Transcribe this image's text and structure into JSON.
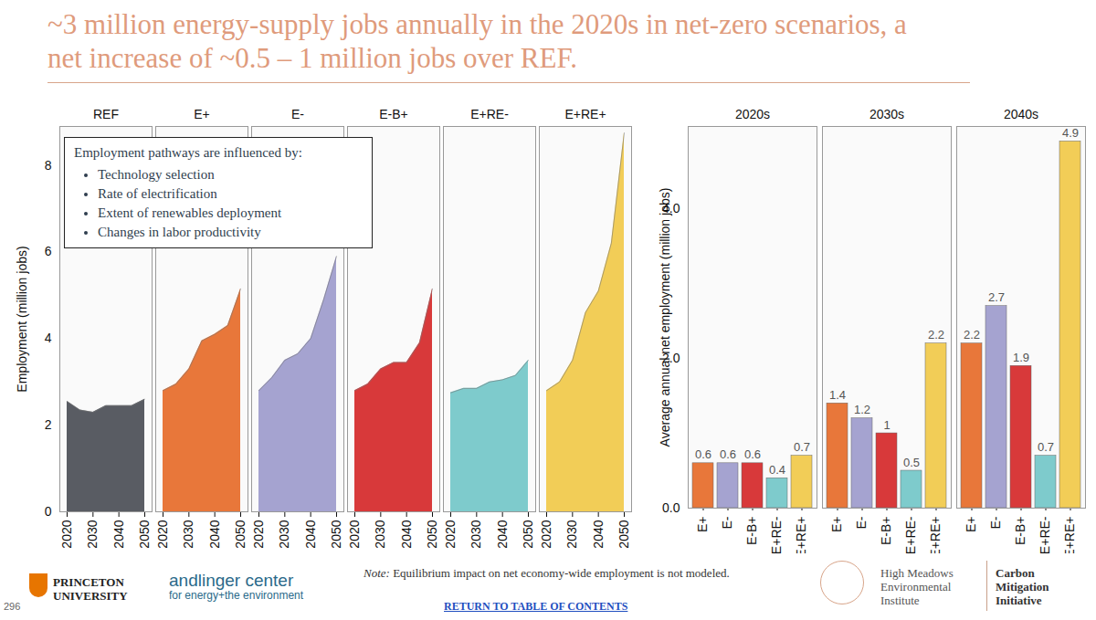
{
  "header": {
    "title": "~3 million energy-supply jobs annually in the 2020s in net-zero scenarios, a net increase of ~0.5 – 1 million jobs over REF."
  },
  "chart_data": [
    {
      "type": "area",
      "y_label": "Employment (million jobs)",
      "x": [
        2020,
        2025,
        2030,
        2035,
        2040,
        2045,
        2050
      ],
      "xlim": [
        2020,
        2050
      ],
      "xticks": [
        2020,
        2030,
        2040,
        2050
      ],
      "ylim": [
        0,
        8.9
      ],
      "yticks": [
        0,
        2,
        4,
        6,
        8
      ],
      "grid": false,
      "annotations": {
        "heading": "Employment pathways are influenced by:",
        "items": [
          "Technology selection",
          "Rate of electrification",
          "Extent of renewables deployment",
          "Changes in labor productivity"
        ]
      },
      "series": [
        {
          "name": "REF",
          "color": "#595c63",
          "values": [
            2.55,
            2.35,
            2.3,
            2.45,
            2.45,
            2.45,
            2.6
          ]
        },
        {
          "name": "E+",
          "color": "#e8773a",
          "values": [
            2.8,
            2.95,
            3.3,
            3.95,
            4.1,
            4.3,
            5.15
          ]
        },
        {
          "name": "E-",
          "color": "#a5a3d0",
          "values": [
            2.8,
            3.1,
            3.5,
            3.65,
            4.0,
            4.9,
            5.9
          ]
        },
        {
          "name": "E-B+",
          "color": "#d8393a",
          "values": [
            2.8,
            2.95,
            3.3,
            3.45,
            3.45,
            3.9,
            5.15
          ]
        },
        {
          "name": "E+RE-",
          "color": "#7ecbcc",
          "values": [
            2.75,
            2.85,
            2.85,
            3.0,
            3.05,
            3.15,
            3.5
          ]
        },
        {
          "name": "E+RE+",
          "color": "#f2cd57",
          "values": [
            2.8,
            3.0,
            3.5,
            4.6,
            5.1,
            6.2,
            8.75
          ]
        }
      ]
    },
    {
      "type": "bar",
      "y_label": "Average annual net employment (million jobs)",
      "categories": [
        "2020s",
        "2030s",
        "2040s"
      ],
      "ylim": [
        0,
        5.1
      ],
      "yticks": [
        0,
        2,
        4
      ],
      "grid": false,
      "data_labels": true,
      "series": [
        {
          "name": "E+",
          "color": "#e8773a",
          "values": [
            0.6,
            1.4,
            2.2
          ]
        },
        {
          "name": "E-",
          "color": "#a5a3d0",
          "values": [
            0.6,
            1.2,
            2.7
          ]
        },
        {
          "name": "E-B+",
          "color": "#d8393a",
          "values": [
            0.6,
            1.0,
            1.9
          ]
        },
        {
          "name": "E+RE-",
          "color": "#7ecbcc",
          "values": [
            0.4,
            0.5,
            0.7
          ]
        },
        {
          "name": "E+RE+",
          "color": "#f2cd57",
          "values": [
            0.7,
            2.2,
            4.9
          ]
        }
      ]
    }
  ],
  "footer": {
    "page": "296",
    "princeton": [
      "PRINCETON",
      "UNIVERSITY"
    ],
    "andlinger": [
      "andlinger center",
      "for energy+the environment"
    ],
    "note_label": "Note:",
    "note": "Equilibrium impact on net economy-wide employment is not modeled.",
    "link": "RETURN TO TABLE OF CONTENTS",
    "hmei": [
      "High Meadows",
      "Environmental",
      "Institute"
    ],
    "cmi": [
      "Carbon",
      "Mitigation",
      "Initiative"
    ]
  }
}
